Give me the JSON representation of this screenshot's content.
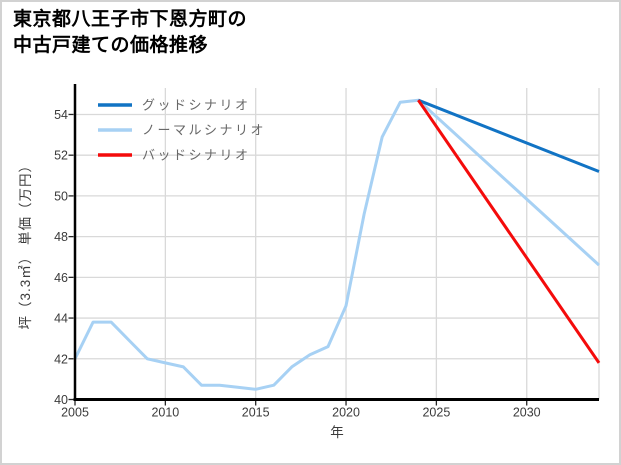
{
  "chart_data": {
    "type": "line",
    "title": "東京都八王子市下恩方町の中古戸建ての価格推移",
    "title_lines": [
      "東京都八王子市下恩方町の",
      "中古戸建ての価格推移"
    ],
    "xlabel": "年",
    "ylabel": "坪（3.3㎡） 単価（万円）",
    "xlim": [
      2005,
      2034
    ],
    "ylim": [
      40,
      55.3
    ],
    "xticks": [
      2005,
      2010,
      2015,
      2020,
      2025,
      2030
    ],
    "yticks": [
      40,
      42,
      44,
      46,
      48,
      50,
      52,
      54
    ],
    "grid": true,
    "legend_position": "upper-left",
    "colors": {
      "good": "#1173c4",
      "normal": "#a7d1f4",
      "bad": "#f40b0b",
      "grid": "#d9d9d9",
      "spine": "#000000",
      "tick_text": "#3b3b3b",
      "legend_text": "#686868"
    },
    "series": [
      {
        "key": "good",
        "name": "グッドシナリオ",
        "zorder": 2,
        "x": [
          2024,
          2034
        ],
        "values": [
          54.7,
          51.2
        ]
      },
      {
        "key": "normal",
        "name": "ノーマルシナリオ",
        "zorder": 1,
        "x": [
          2005,
          2006,
          2007,
          2008,
          2009,
          2010,
          2011,
          2012,
          2013,
          2014,
          2015,
          2016,
          2017,
          2018,
          2019,
          2020,
          2021,
          2022,
          2023,
          2024,
          2034
        ],
        "values": [
          42.0,
          43.8,
          43.8,
          42.9,
          42.0,
          41.8,
          41.6,
          40.7,
          40.7,
          40.6,
          40.5,
          40.7,
          41.6,
          42.2,
          42.6,
          44.6,
          49.1,
          52.9,
          54.6,
          54.7,
          46.6
        ]
      },
      {
        "key": "bad",
        "name": "バッドシナリオ",
        "zorder": 3,
        "x": [
          2024,
          2034
        ],
        "values": [
          54.7,
          41.8
        ]
      }
    ]
  }
}
